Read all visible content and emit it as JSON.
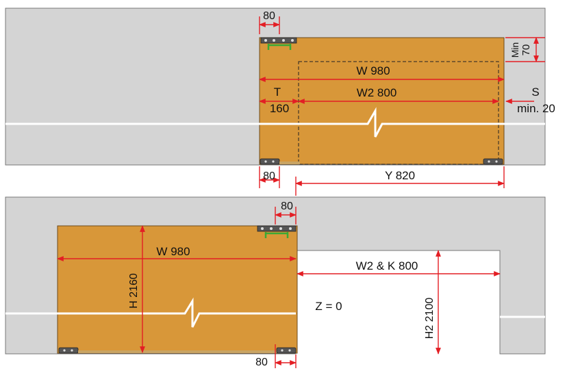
{
  "colors": {
    "wall": "#d4d4d4",
    "wall_stroke": "#777777",
    "panel": "#d89739",
    "panel_stroke": "#6b4a1c",
    "dimension": "#e31e24",
    "track_green": "#3aa935",
    "opening": "#ffffff",
    "hardware": "#4a4a4a"
  },
  "top_view": {
    "dim_80_top": "80",
    "min_label": "Min",
    "min_value": "70",
    "w_label": "W 980",
    "t_label": "T",
    "t_value": "160",
    "w2_label": "W2 800",
    "s_label": "S",
    "s_value": "min. 20",
    "dim_80_bottom": "80",
    "y_label": "Y 820"
  },
  "bottom_view": {
    "dim_80_top": "80",
    "w_label": "W 980",
    "h_label": "H 2160",
    "w2k_label": "W2 &  K 800",
    "z_label": "Z = 0",
    "h2_label": "H2 2100",
    "dim_80_bottom": "80"
  }
}
